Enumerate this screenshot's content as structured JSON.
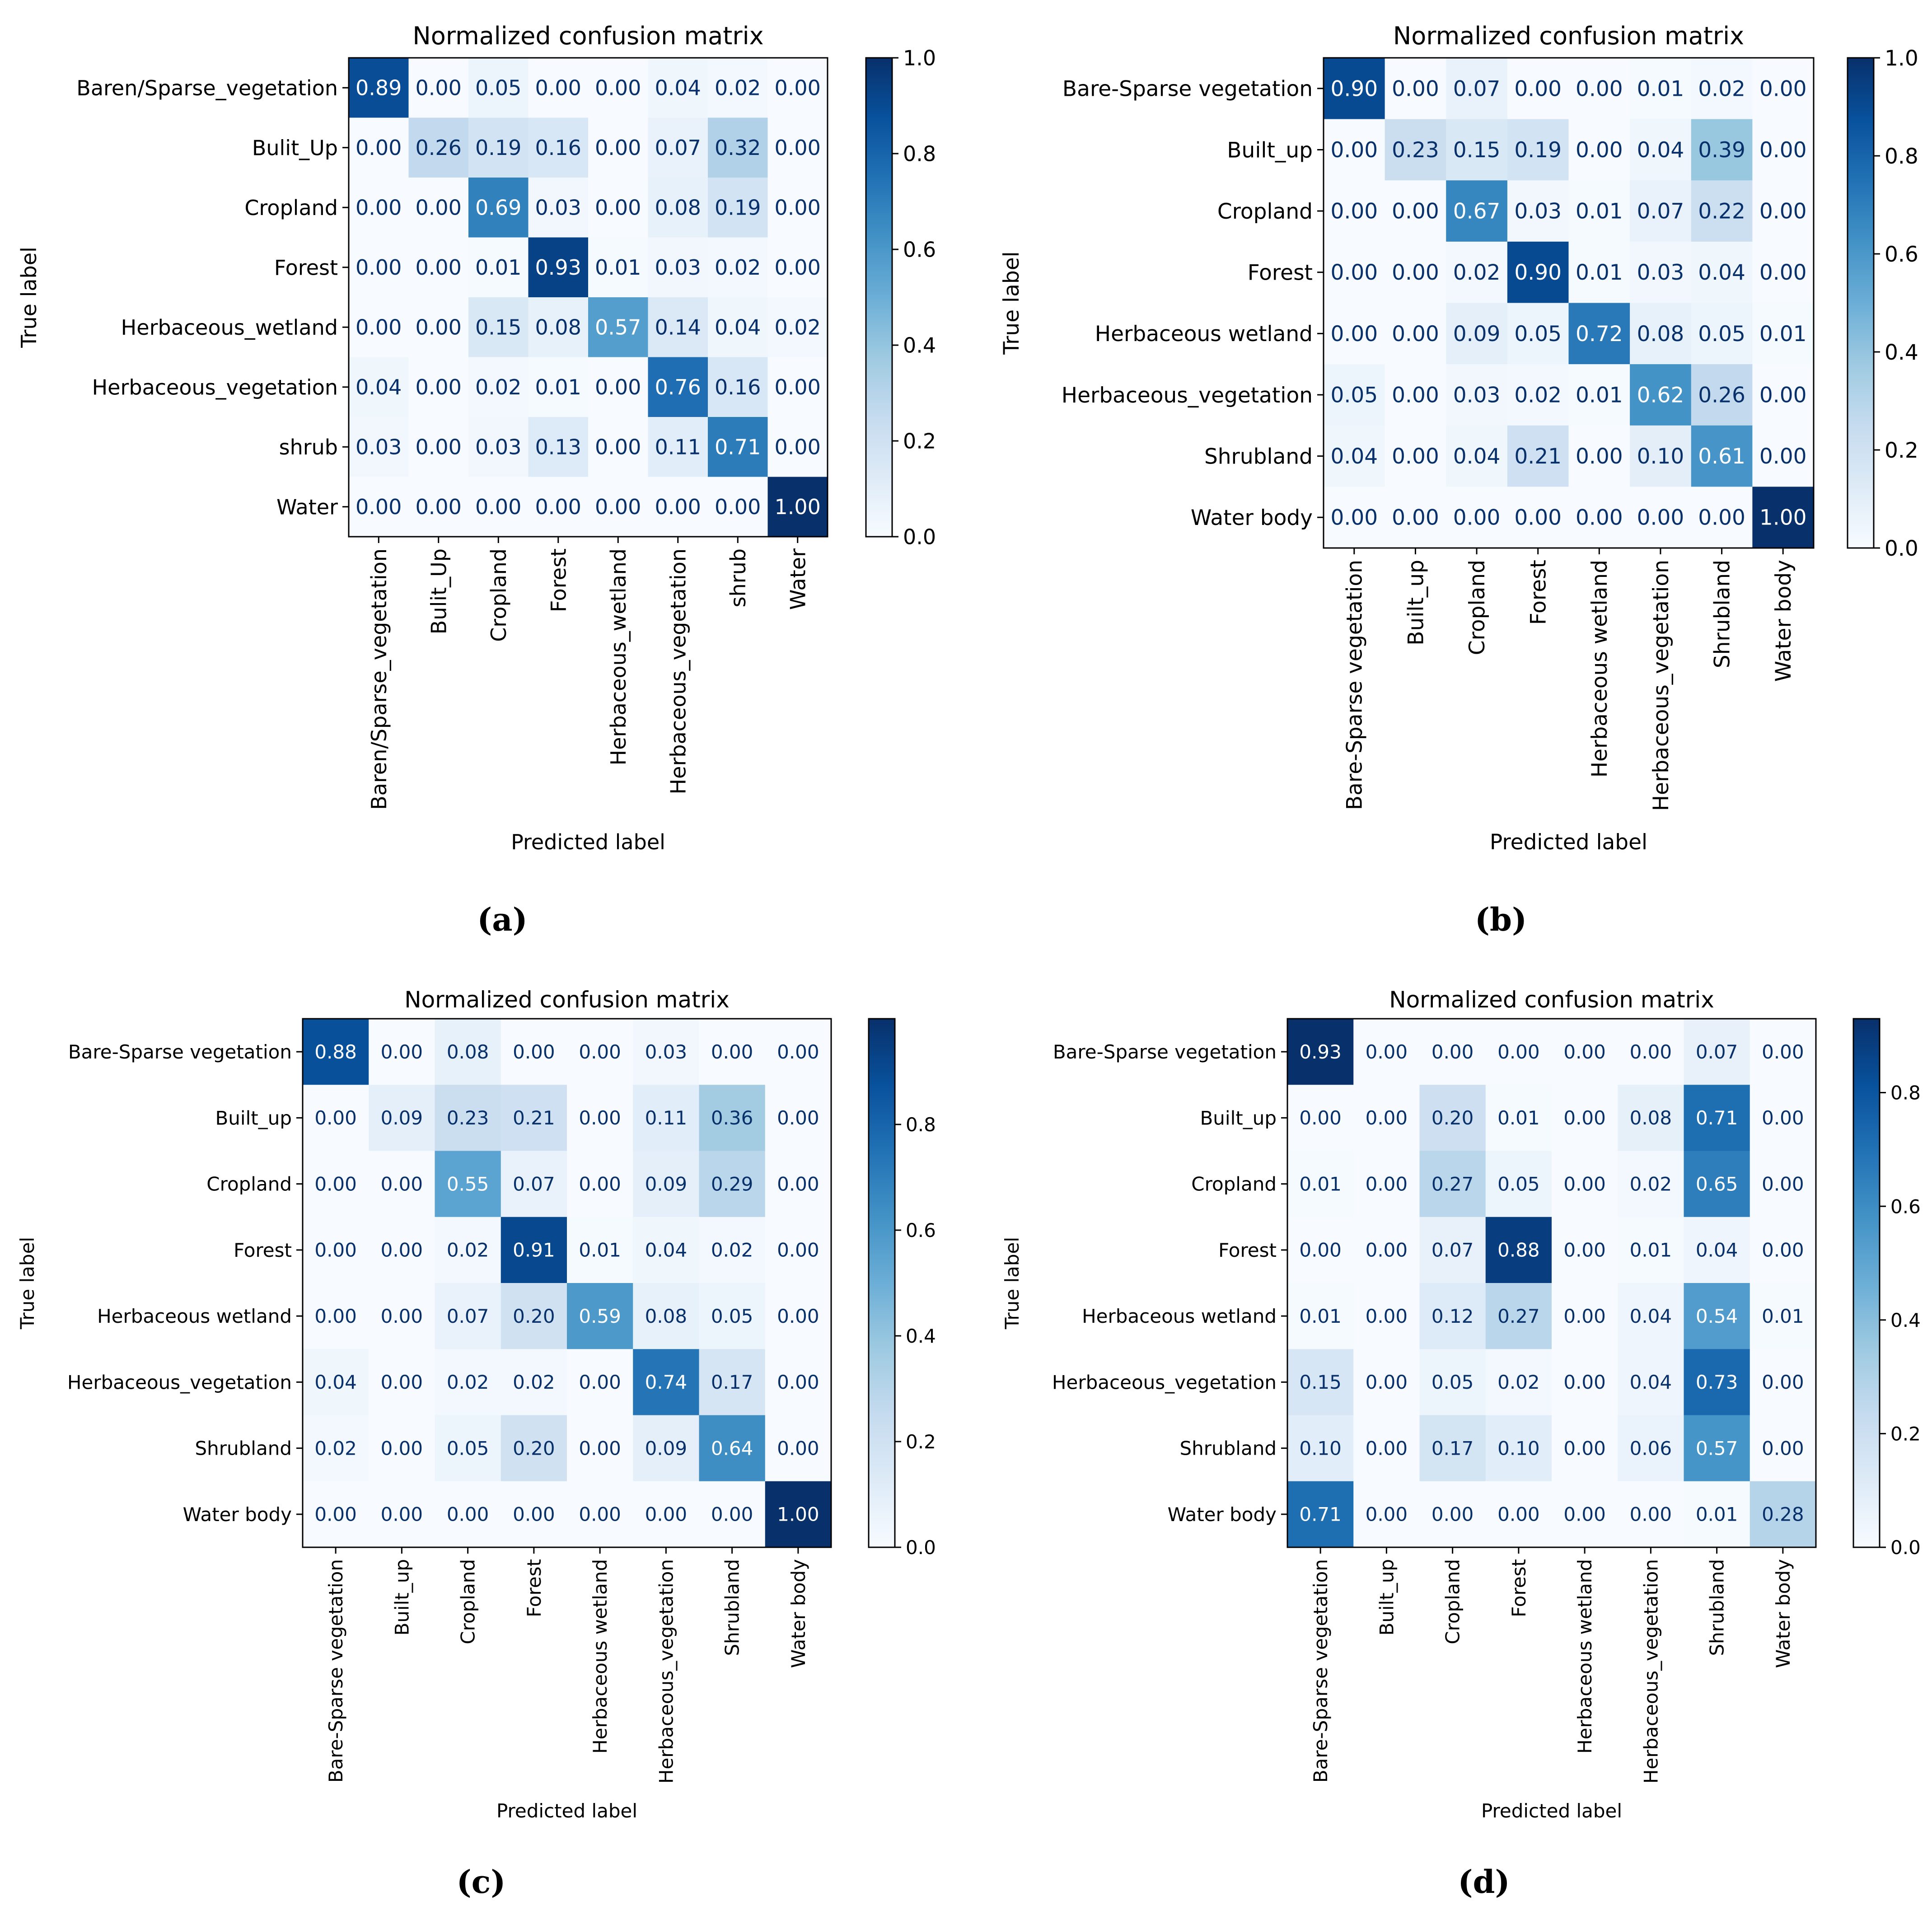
{
  "chart_data": [
    {
      "type": "heatmap",
      "panel_label": "(a)",
      "title": "Normalized confusion matrix",
      "xlabel": "Predicted label",
      "ylabel": "True label",
      "categories": [
        "Baren/Sparse_vegetation",
        "Bulit_Up",
        "Cropland",
        "Forest",
        "Herbaceous_wetland",
        "Herbaceous_vegetation",
        "shrub",
        "Water"
      ],
      "values": [
        [
          0.89,
          0.0,
          0.05,
          0.0,
          0.0,
          0.04,
          0.02,
          0.0
        ],
        [
          0.0,
          0.26,
          0.19,
          0.16,
          0.0,
          0.07,
          0.32,
          0.0
        ],
        [
          0.0,
          0.0,
          0.69,
          0.03,
          0.0,
          0.08,
          0.19,
          0.0
        ],
        [
          0.0,
          0.0,
          0.01,
          0.93,
          0.01,
          0.03,
          0.02,
          0.0
        ],
        [
          0.0,
          0.0,
          0.15,
          0.08,
          0.57,
          0.14,
          0.04,
          0.02
        ],
        [
          0.04,
          0.0,
          0.02,
          0.01,
          0.0,
          0.76,
          0.16,
          0.0
        ],
        [
          0.03,
          0.0,
          0.03,
          0.13,
          0.0,
          0.11,
          0.71,
          0.0
        ],
        [
          0.0,
          0.0,
          0.0,
          0.0,
          0.0,
          0.0,
          0.0,
          1.0
        ]
      ],
      "colorbar": {
        "vmin": 0.0,
        "vmax": 1.0,
        "ticks": [
          "0.0",
          "0.2",
          "0.4",
          "0.6",
          "0.8",
          "1.0"
        ]
      },
      "colormap": "Blues"
    },
    {
      "type": "heatmap",
      "panel_label": "(b)",
      "title": "Normalized confusion matrix",
      "xlabel": "Predicted label",
      "ylabel": "True label",
      "categories": [
        "Bare-Sparse vegetation",
        "Built_up",
        "Cropland",
        "Forest",
        "Herbaceous wetland",
        "Herbaceous_vegetation",
        "Shrubland",
        "Water body"
      ],
      "values": [
        [
          0.9,
          0.0,
          0.07,
          0.0,
          0.0,
          0.01,
          0.02,
          0.0
        ],
        [
          0.0,
          0.23,
          0.15,
          0.19,
          0.0,
          0.04,
          0.39,
          0.0
        ],
        [
          0.0,
          0.0,
          0.67,
          0.03,
          0.01,
          0.07,
          0.22,
          0.0
        ],
        [
          0.0,
          0.0,
          0.02,
          0.9,
          0.01,
          0.03,
          0.04,
          0.0
        ],
        [
          0.0,
          0.0,
          0.09,
          0.05,
          0.72,
          0.08,
          0.05,
          0.01
        ],
        [
          0.05,
          0.0,
          0.03,
          0.02,
          0.01,
          0.62,
          0.26,
          0.0
        ],
        [
          0.04,
          0.0,
          0.04,
          0.21,
          0.0,
          0.1,
          0.61,
          0.0
        ],
        [
          0.0,
          0.0,
          0.0,
          0.0,
          0.0,
          0.0,
          0.0,
          1.0
        ]
      ],
      "colorbar": {
        "vmin": 0.0,
        "vmax": 1.0,
        "ticks": [
          "0.0",
          "0.2",
          "0.4",
          "0.6",
          "0.8",
          "1.0"
        ]
      },
      "colormap": "Blues"
    },
    {
      "type": "heatmap",
      "panel_label": "(c)",
      "title": "Normalized confusion matrix",
      "xlabel": "Predicted label",
      "ylabel": "True label",
      "categories": [
        "Bare-Sparse vegetation",
        "Built_up",
        "Cropland",
        "Forest",
        "Herbaceous wetland",
        "Herbaceous_vegetation",
        "Shrubland",
        "Water body"
      ],
      "values": [
        [
          0.88,
          0.0,
          0.08,
          0.0,
          0.0,
          0.03,
          0.0,
          0.0
        ],
        [
          0.0,
          0.09,
          0.23,
          0.21,
          0.0,
          0.11,
          0.36,
          0.0
        ],
        [
          0.0,
          0.0,
          0.55,
          0.07,
          0.0,
          0.09,
          0.29,
          0.0
        ],
        [
          0.0,
          0.0,
          0.02,
          0.91,
          0.01,
          0.04,
          0.02,
          0.0
        ],
        [
          0.0,
          0.0,
          0.07,
          0.2,
          0.59,
          0.08,
          0.05,
          0.0
        ],
        [
          0.04,
          0.0,
          0.02,
          0.02,
          0.0,
          0.74,
          0.17,
          0.0
        ],
        [
          0.02,
          0.0,
          0.05,
          0.2,
          0.0,
          0.09,
          0.64,
          0.0
        ],
        [
          0.0,
          0.0,
          0.0,
          0.0,
          0.0,
          0.0,
          0.0,
          1.0
        ]
      ],
      "colorbar": {
        "vmin": 0.0,
        "vmax": 1.0,
        "ticks": [
          "0.0",
          "0.2",
          "0.4",
          "0.6",
          "0.8"
        ]
      },
      "colormap": "Blues"
    },
    {
      "type": "heatmap",
      "panel_label": "(d)",
      "title": "Normalized confusion matrix",
      "xlabel": "Predicted label",
      "ylabel": "True label",
      "categories": [
        "Bare-Sparse vegetation",
        "Built_up",
        "Cropland",
        "Forest",
        "Herbaceous wetland",
        "Herbaceous_vegetation",
        "Shrubland",
        "Water body"
      ],
      "values": [
        [
          0.93,
          0.0,
          0.0,
          0.0,
          0.0,
          0.0,
          0.07,
          0.0
        ],
        [
          0.0,
          0.0,
          0.2,
          0.01,
          0.0,
          0.08,
          0.71,
          0.0
        ],
        [
          0.01,
          0.0,
          0.27,
          0.05,
          0.0,
          0.02,
          0.65,
          0.0
        ],
        [
          0.0,
          0.0,
          0.07,
          0.88,
          0.0,
          0.01,
          0.04,
          0.0
        ],
        [
          0.01,
          0.0,
          0.12,
          0.27,
          0.0,
          0.04,
          0.54,
          0.01
        ],
        [
          0.15,
          0.0,
          0.05,
          0.02,
          0.0,
          0.04,
          0.73,
          0.0
        ],
        [
          0.1,
          0.0,
          0.17,
          0.1,
          0.0,
          0.06,
          0.57,
          0.0
        ],
        [
          0.71,
          0.0,
          0.0,
          0.0,
          0.0,
          0.0,
          0.01,
          0.28
        ]
      ],
      "colorbar": {
        "vmin": 0.0,
        "vmax": 0.93,
        "ticks": [
          "0.0",
          "0.2",
          "0.4",
          "0.6",
          "0.8"
        ]
      },
      "colormap": "Blues"
    }
  ]
}
